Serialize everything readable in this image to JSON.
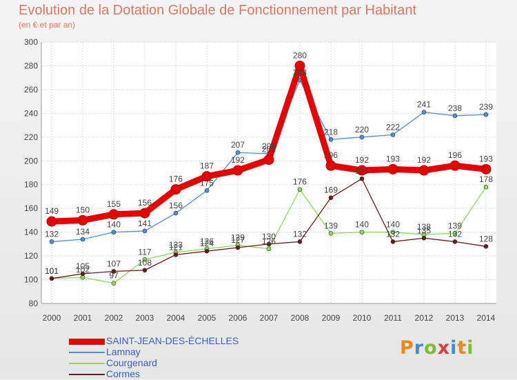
{
  "header": {
    "title": "Evolution de la Dotation Globale de Fonctionnement par Habitant",
    "subtitle": "(en € et par an)"
  },
  "brand": {
    "text": "Proxiti",
    "colors": [
      "#e88a1a",
      "#3a8fd8",
      "#7cbf2e",
      "#e03b3b",
      "#3a8fd8",
      "#e88a1a",
      "#7cbf2e"
    ]
  },
  "chart_data": {
    "type": "line",
    "x": [
      "2000",
      "2001",
      "2002",
      "2003",
      "2004",
      "2005",
      "2006",
      "2007",
      "2008",
      "2009",
      "2010",
      "2011",
      "2012",
      "2013",
      "2014"
    ],
    "ylim": [
      80,
      300
    ],
    "yticks": [
      "80",
      "100",
      "120",
      "140",
      "160",
      "180",
      "200",
      "220",
      "240",
      "260",
      "280",
      "300"
    ],
    "grid": true,
    "legend_position": "bottom-left",
    "series": [
      {
        "name": "SAINT-JEAN-DES-ÉCHELLES",
        "color": "#e60000",
        "values": [
          149,
          150,
          155,
          156,
          176,
          187,
          192,
          201,
          280,
          196,
          192,
          193,
          192,
          196,
          193
        ]
      },
      {
        "name": "Lamnay",
        "color": "#4a90d9",
        "values": [
          132,
          134,
          140,
          141,
          156,
          175,
          207,
          206,
          268,
          218,
          220,
          222,
          241,
          238,
          239
        ]
      },
      {
        "name": "Courgenard",
        "color": "#88dd55",
        "values": [
          101,
          102,
          97,
          117,
          123,
          126,
          129,
          126,
          176,
          139,
          140,
          140,
          138,
          139,
          178
        ]
      },
      {
        "name": "Cormes",
        "color": "#6b1a1a",
        "values": [
          101,
          105,
          107,
          108,
          121,
          124,
          127,
          130,
          132,
          169,
          185,
          132,
          135,
          132,
          128
        ]
      }
    ]
  }
}
